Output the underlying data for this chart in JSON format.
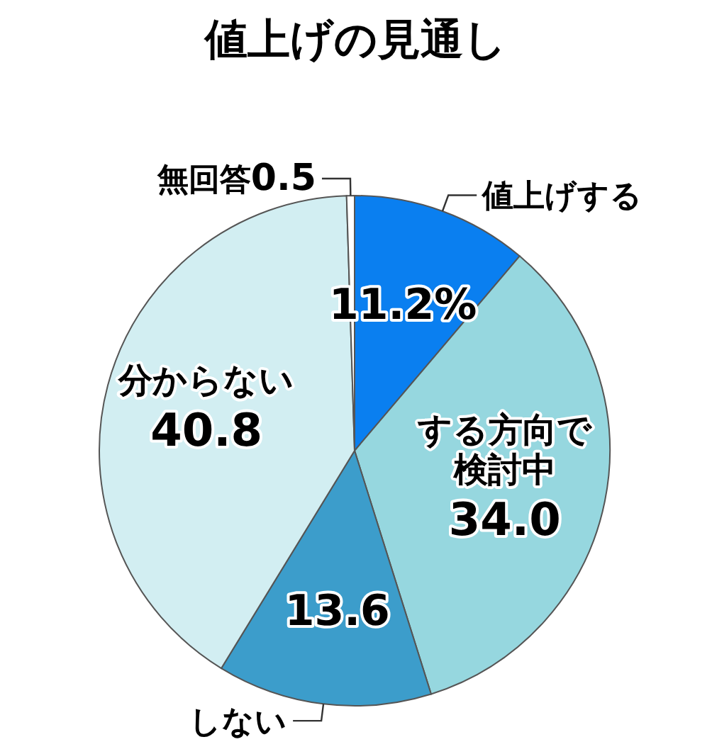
{
  "chart_data": {
    "type": "pie",
    "title": "値上げの見通し",
    "categories": [
      "値上げする",
      "する方向で検討中",
      "しない",
      "分からない",
      "無回答"
    ],
    "values": [
      11.2,
      34.0,
      13.6,
      40.8,
      0.5
    ],
    "value_labels": [
      "11.2%",
      "34.0",
      "13.6",
      "40.8",
      "0.5"
    ],
    "colors": [
      "#0a7ff0",
      "#96d7df",
      "#3c9dcb",
      "#d2eef2",
      "#ffffff"
    ]
  }
}
